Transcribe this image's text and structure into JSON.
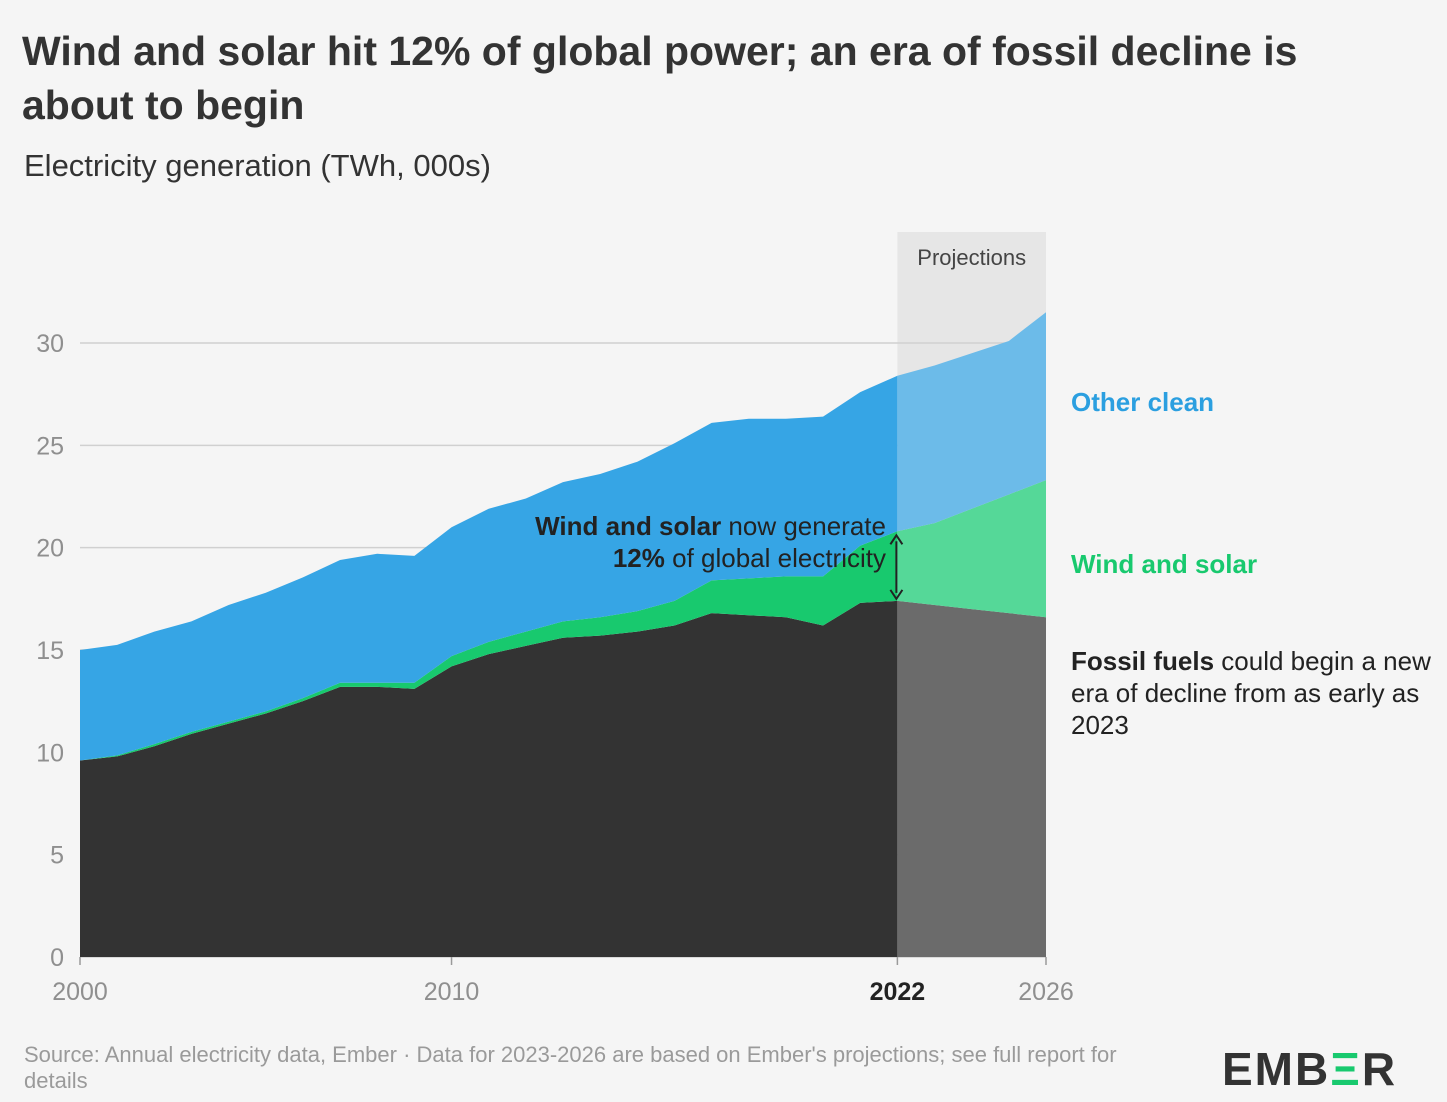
{
  "title": "Wind and solar hit 12% of global power; an era of fossil decline is about to begin",
  "subtitle": "Electricity generation (TWh, 000s)",
  "projection_label": "Projections",
  "labels": {
    "other_clean": "Other clean",
    "wind_solar": "Wind and solar",
    "fossil_bold": "Fossil fuels",
    "fossil_rest": " could begin a new era of decline from as early as 2023"
  },
  "annotation": {
    "bold1": "Wind and solar",
    "rest1": " now generate",
    "bold2": "12%",
    "rest2": " of global electricity"
  },
  "source": "Source: Annual electricity data, Ember · Data for 2023-2026 are based on Ember's projections; see full report for details",
  "logo": {
    "pre": "EMB",
    "accent": "Ξ",
    "post": "R"
  },
  "colors": {
    "fossil": "#333333",
    "fossil_proj": "#6b6b6b",
    "wind_solar": "#18c96e",
    "wind_solar_proj": "#55d898",
    "other_clean": "#36a5e5",
    "other_clean_proj": "#6cbbe9",
    "projection_band": "#e6e6e6",
    "grid": "#d0d0d0",
    "axis_text": "#8f8f8f"
  },
  "chart_data": {
    "type": "area",
    "stacked": true,
    "x_ticks": [
      2000,
      2010,
      2022,
      2026
    ],
    "x_tick_bold": 2022,
    "y_ticks": [
      0,
      5,
      10,
      15,
      20,
      25,
      30
    ],
    "xlim": [
      2000,
      2026
    ],
    "ylim": [
      0,
      30
    ],
    "grid": true,
    "projection_start": 2022,
    "x": [
      2000,
      2001,
      2002,
      2003,
      2004,
      2005,
      2006,
      2007,
      2008,
      2009,
      2010,
      2011,
      2012,
      2013,
      2014,
      2015,
      2016,
      2017,
      2018,
      2019,
      2020,
      2021,
      2022,
      2023,
      2024,
      2025,
      2026
    ],
    "series": [
      {
        "name": "Fossil fuels",
        "values": [
          9.6,
          9.8,
          10.3,
          10.9,
          11.4,
          11.9,
          12.5,
          13.2,
          13.2,
          13.1,
          14.2,
          14.8,
          15.2,
          15.6,
          15.7,
          15.9,
          16.2,
          16.8,
          16.7,
          16.6,
          16.2,
          17.3,
          17.4,
          17.2,
          17.0,
          16.8,
          16.6
        ]
      },
      {
        "name": "Wind and solar",
        "values": [
          0.0,
          0.05,
          0.1,
          0.1,
          0.1,
          0.1,
          0.15,
          0.2,
          0.2,
          0.3,
          0.5,
          0.6,
          0.7,
          0.8,
          0.9,
          1.0,
          1.2,
          1.6,
          1.8,
          2.0,
          2.4,
          2.8,
          3.4,
          4.0,
          4.9,
          5.8,
          6.7
        ]
      },
      {
        "name": "Other clean",
        "values": [
          5.4,
          5.4,
          5.5,
          5.4,
          5.7,
          5.8,
          5.9,
          6.0,
          6.3,
          6.2,
          6.3,
          6.5,
          6.5,
          6.8,
          7.0,
          7.3,
          7.7,
          7.7,
          7.8,
          7.7,
          7.8,
          7.5,
          7.6,
          7.7,
          7.6,
          7.5,
          8.2
        ]
      }
    ]
  }
}
